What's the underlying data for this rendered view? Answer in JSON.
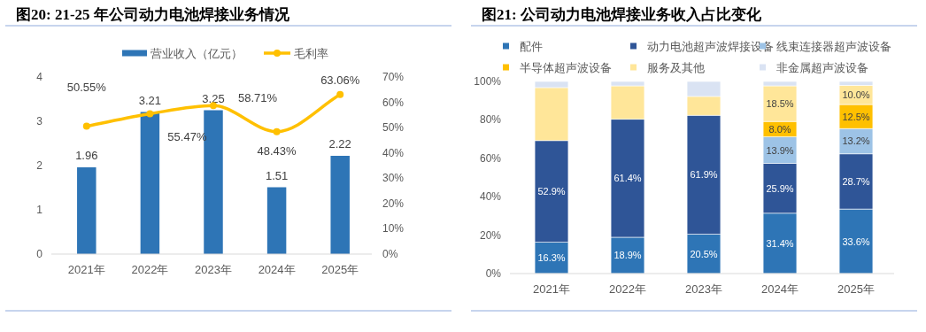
{
  "chart_data": [
    {
      "type": "bar",
      "title": "图20: 21-25 年公司动力电池焊接业务情况",
      "categories": [
        "2021年",
        "2022年",
        "2023年",
        "2024年",
        "2025年"
      ],
      "series": [
        {
          "name": "营业收入（亿元）",
          "type": "bar",
          "color": "#2e75b6",
          "values": [
            1.96,
            3.21,
            3.25,
            1.51,
            2.22
          ],
          "value_labels": [
            "1.96",
            "3.21",
            "3.25",
            "1.51",
            "2.22"
          ]
        },
        {
          "name": "毛利率",
          "type": "line",
          "axis": "y2",
          "color": "#ffc000",
          "values": [
            50.55,
            55.47,
            58.71,
            48.43,
            63.06
          ],
          "value_labels": [
            "50.55%",
            "55.47%",
            "58.71%",
            "48.43%",
            "63.06%"
          ]
        }
      ],
      "ylim": [
        0,
        4
      ],
      "yticks": [
        0,
        1,
        2,
        3,
        4
      ],
      "y2lim": [
        0,
        70
      ],
      "y2ticks": [
        {
          "value": 0,
          "label": "0%"
        },
        {
          "value": 10,
          "label": "10%"
        },
        {
          "value": 20,
          "label": "20%"
        },
        {
          "value": 30,
          "label": "30%"
        },
        {
          "value": 40,
          "label": "40%"
        },
        {
          "value": 50,
          "label": "50%"
        },
        {
          "value": 60,
          "label": "60%"
        },
        {
          "value": 70,
          "label": "70%"
        }
      ],
      "marker": "circle",
      "legend": "top",
      "grid": false
    },
    {
      "type": "bar",
      "title": "图21: 公司动力电池焊接业务收入占比变化",
      "categories": [
        "2021年",
        "2022年",
        "2023年",
        "2024年",
        "2025年"
      ],
      "stacked": true,
      "series": [
        {
          "name": "配件",
          "color": "#2e75b6",
          "values": [
            16.3,
            18.9,
            20.5,
            31.4,
            33.6
          ],
          "value_labels": [
            "16.3%",
            "18.9%",
            "20.5%",
            "31.4%",
            "33.6%"
          ]
        },
        {
          "name": "动力电池超声波焊接设备",
          "color": "#2f5597",
          "values": [
            52.9,
            61.4,
            61.9,
            25.9,
            28.7
          ],
          "value_labels": [
            "52.9%",
            "61.4%",
            "61.9%",
            "25.9%",
            "28.7%"
          ]
        },
        {
          "name": "线束连接器超声波设备",
          "color": "#9dc3e6",
          "values": [
            0,
            0,
            0,
            13.9,
            13.2
          ],
          "value_labels": [
            null,
            null,
            null,
            "13.9%",
            "13.2%"
          ]
        },
        {
          "name": "半导体超声波设备",
          "color": "#ffc000",
          "values": [
            0,
            0,
            0,
            8.0,
            12.5
          ],
          "value_labels": [
            null,
            null,
            null,
            "8.0%",
            "12.5%"
          ]
        },
        {
          "name": "服务及其他",
          "color": "#ffe699",
          "values": [
            27.6,
            17.4,
            9.8,
            18.5,
            10.0
          ],
          "value_labels": [
            null,
            null,
            null,
            "18.5%",
            "10.0%"
          ]
        },
        {
          "name": "非金属超声波设备",
          "color": "#dae3f3",
          "values": [
            3.2,
            2.3,
            7.8,
            2.3,
            2.0
          ]
        }
      ],
      "ylim": [
        0,
        100
      ],
      "yticks": [
        {
          "value": 0,
          "label": "0%"
        },
        {
          "value": 20,
          "label": "20%"
        },
        {
          "value": 40,
          "label": "40%"
        },
        {
          "value": 60,
          "label": "60%"
        },
        {
          "value": 80,
          "label": "80%"
        },
        {
          "value": 100,
          "label": "100%"
        }
      ],
      "legend": "top",
      "grid": false
    }
  ]
}
